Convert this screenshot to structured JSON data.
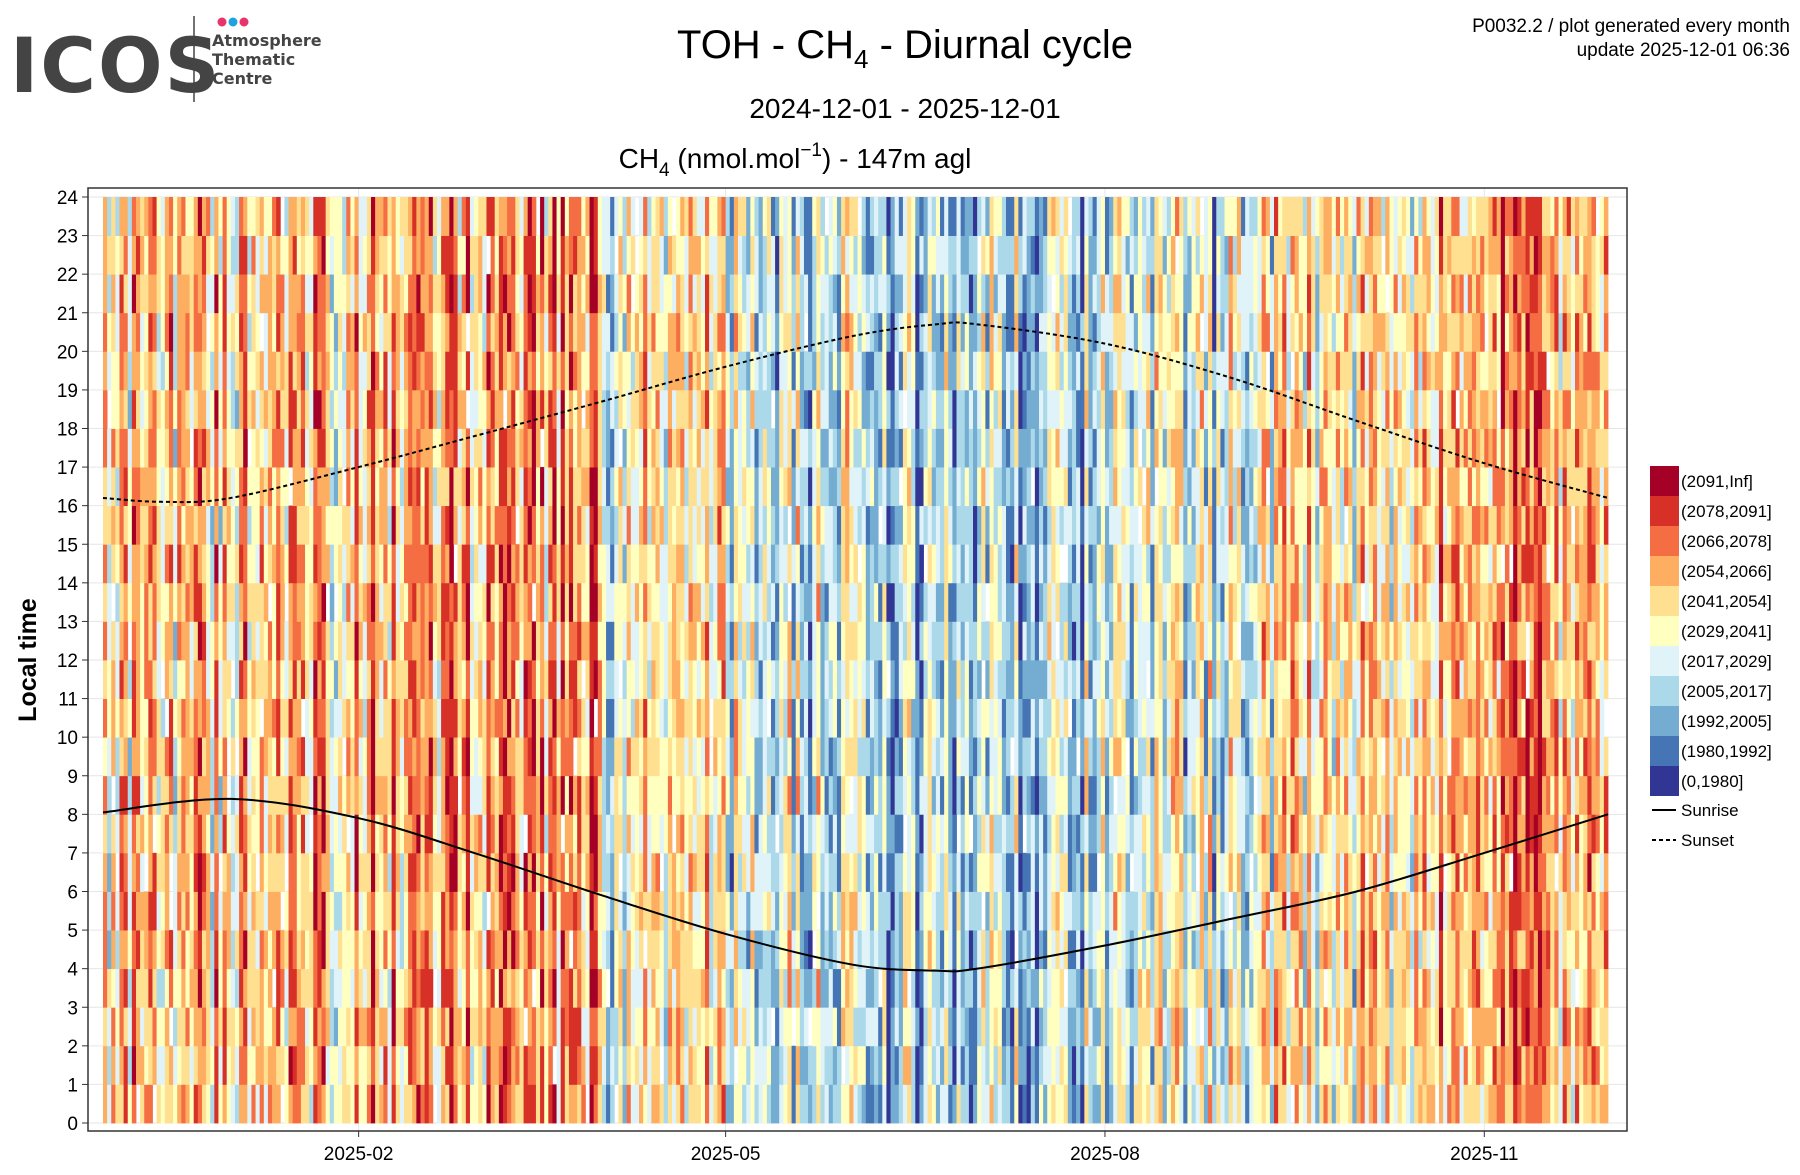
{
  "header": {
    "logo": {
      "mark": "ICOS",
      "lines": [
        "Atmosphere",
        "Thematic",
        "Centre"
      ],
      "dot_colors": [
        "#e8336d",
        "#1fa3e0",
        "#e8336d"
      ]
    },
    "title_prefix": "TOH - CH",
    "title_sub": "4",
    "title_suffix": " - Diurnal cycle",
    "date_range": "2024-12-01 - 2025-12-01",
    "meta_line1": "P0032.2 / plot generated every month",
    "meta_line2": "update  2025-12-01 06:36"
  },
  "chart_data": {
    "type": "heatmap",
    "title_prefix": "CH",
    "title_sub": "4",
    "title_mid": " (nmol.mol",
    "title_sup": "−1",
    "title_suffix": ") - 147m agl",
    "ylabel": "Local time",
    "xlabel": "",
    "xlim": [
      "2024-12-01",
      "2025-12-01"
    ],
    "ylim": [
      0,
      24
    ],
    "x_ticks": [
      {
        "date": "2025-02-01",
        "label": "2025-02"
      },
      {
        "date": "2025-05-01",
        "label": "2025-05"
      },
      {
        "date": "2025-08-01",
        "label": "2025-08"
      },
      {
        "date": "2025-11-01",
        "label": "2025-11"
      }
    ],
    "y_ticks": [
      "0",
      "1",
      "2",
      "3",
      "4",
      "5",
      "6",
      "7",
      "8",
      "9",
      "10",
      "11",
      "12",
      "13",
      "14",
      "15",
      "16",
      "17",
      "18",
      "19",
      "20",
      "21",
      "22",
      "23",
      "24"
    ],
    "grid": true,
    "legend_position": "right",
    "bins": [
      {
        "label": "(2091,Inf]",
        "color": "#a50026"
      },
      {
        "label": "(2078,2091]",
        "color": "#d73027"
      },
      {
        "label": "(2066,2078]",
        "color": "#f46d43"
      },
      {
        "label": "(2054,2066]",
        "color": "#fdae61"
      },
      {
        "label": "(2041,2054]",
        "color": "#fee090"
      },
      {
        "label": "(2029,2041]",
        "color": "#ffffbf"
      },
      {
        "label": "(2017,2029]",
        "color": "#e0f3f8"
      },
      {
        "label": "(2005,2017]",
        "color": "#abd9e9"
      },
      {
        "label": "(1992,2005]",
        "color": "#74add1"
      },
      {
        "label": "(1980,1992]",
        "color": "#4575b4"
      },
      {
        "label": "(0,1980]",
        "color": "#313695"
      }
    ],
    "monthly_typical_bin": [
      {
        "month": "2024-12",
        "bin": "(2041,2054]"
      },
      {
        "month": "2025-01",
        "bin": "(2041,2054]"
      },
      {
        "month": "2025-02",
        "bin": "(2054,2066]"
      },
      {
        "month": "2025-03",
        "bin": "(2054,2066]"
      },
      {
        "month": "2025-04",
        "bin": "(2029,2041]"
      },
      {
        "month": "2025-05",
        "bin": "(2017,2029]"
      },
      {
        "month": "2025-06",
        "bin": "(2005,2017]"
      },
      {
        "month": "2025-07",
        "bin": "(2005,2017]"
      },
      {
        "month": "2025-08",
        "bin": "(2017,2029]"
      },
      {
        "month": "2025-09",
        "bin": "(2029,2041]"
      },
      {
        "month": "2025-10",
        "bin": "(2041,2054]"
      },
      {
        "month": "2025-11",
        "bin": "(2054,2066]"
      }
    ],
    "series": [
      {
        "name": "Sunrise",
        "style": "solid",
        "points": [
          {
            "date": "2024-12-01",
            "hour": 8.05
          },
          {
            "date": "2025-01-01",
            "hour": 8.4
          },
          {
            "date": "2025-02-01",
            "hour": 7.9
          },
          {
            "date": "2025-03-01",
            "hour": 7.0
          },
          {
            "date": "2025-04-01",
            "hour": 5.9
          },
          {
            "date": "2025-05-01",
            "hour": 4.9
          },
          {
            "date": "2025-06-01",
            "hour": 4.1
          },
          {
            "date": "2025-06-21",
            "hour": 3.95
          },
          {
            "date": "2025-07-01",
            "hour": 4.0
          },
          {
            "date": "2025-08-01",
            "hour": 4.6
          },
          {
            "date": "2025-09-01",
            "hour": 5.3
          },
          {
            "date": "2025-10-01",
            "hour": 6.0
          },
          {
            "date": "2025-11-01",
            "hour": 7.0
          },
          {
            "date": "2025-12-01",
            "hour": 8.0
          }
        ]
      },
      {
        "name": "Sunset",
        "style": "dashed",
        "points": [
          {
            "date": "2024-12-01",
            "hour": 16.2
          },
          {
            "date": "2024-12-15",
            "hour": 16.1
          },
          {
            "date": "2025-01-01",
            "hour": 16.2
          },
          {
            "date": "2025-02-01",
            "hour": 17.0
          },
          {
            "date": "2025-03-01",
            "hour": 17.8
          },
          {
            "date": "2025-04-01",
            "hour": 18.7
          },
          {
            "date": "2025-05-01",
            "hour": 19.6
          },
          {
            "date": "2025-06-01",
            "hour": 20.4
          },
          {
            "date": "2025-06-21",
            "hour": 20.7
          },
          {
            "date": "2025-07-01",
            "hour": 20.7
          },
          {
            "date": "2025-08-01",
            "hour": 20.2
          },
          {
            "date": "2025-09-01",
            "hour": 19.3
          },
          {
            "date": "2025-10-01",
            "hour": 18.2
          },
          {
            "date": "2025-11-01",
            "hour": 17.1
          },
          {
            "date": "2025-12-01",
            "hour": 16.2
          }
        ]
      }
    ]
  }
}
